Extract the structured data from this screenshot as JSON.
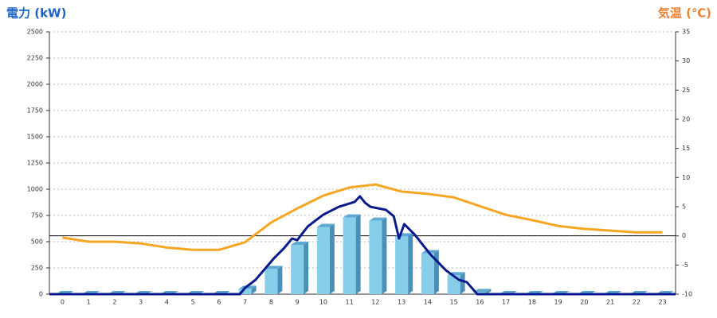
{
  "chart_data": {
    "type": "bar",
    "title_left": "電力 (kW)",
    "title_right": "気温 (℃)",
    "categories": [
      "0",
      "1",
      "2",
      "3",
      "4",
      "5",
      "6",
      "7",
      "8",
      "9",
      "10",
      "11",
      "12",
      "13",
      "14",
      "15",
      "16",
      "17",
      "18",
      "19",
      "20",
      "21",
      "22",
      "23"
    ],
    "xlim": [
      -0.5,
      23.5
    ],
    "ylim": [
      0,
      2500
    ],
    "yticks": [
      0,
      250,
      500,
      750,
      1000,
      1250,
      1500,
      1750,
      2000,
      2250,
      2500
    ],
    "y2lim": [
      -10,
      35
    ],
    "y2ticks": [
      -10,
      -5,
      0,
      5,
      10,
      15,
      20,
      25,
      30,
      35
    ],
    "y2_reference_line": 0,
    "grid": true,
    "series": [
      {
        "color": "#87ceeb",
        "values": [
          0,
          0,
          0,
          0,
          0,
          0,
          0,
          50,
          240,
          470,
          640,
          730,
          700,
          550,
          390,
          180,
          20,
          0,
          0,
          0,
          0,
          0,
          0,
          0
        ]
      },
      {
        "type": "line",
        "color": "#0a1a8c",
        "x": [
          -0.5,
          6.8,
          7.0,
          7.4,
          8.1,
          8.5,
          8.8,
          9.0,
          9.4,
          10.0,
          10.6,
          11.2,
          11.4,
          11.6,
          11.8,
          12.4,
          12.7,
          12.9,
          13.1,
          13.5,
          14.1,
          14.7,
          15.2,
          15.5,
          15.9,
          23.5
        ],
        "values": [
          0,
          0,
          60,
          136,
          340,
          440,
          530,
          515,
          644,
          758,
          833,
          879,
          932,
          871,
          833,
          803,
          742,
          530,
          667,
          568,
          379,
          227,
          136,
          114,
          0,
          0
        ]
      },
      {
        "type": "line",
        "axis": "y2",
        "color": "#f5a623",
        "values": [
          -0.3,
          -1.0,
          -1.0,
          -1.3,
          -2.0,
          -2.4,
          -2.4,
          -1.1,
          2.3,
          4.7,
          6.9,
          8.3,
          8.8,
          7.6,
          7.2,
          6.6,
          5.1,
          3.6,
          2.7,
          1.7,
          1.2,
          0.9,
          0.6,
          0.6
        ]
      }
    ]
  }
}
